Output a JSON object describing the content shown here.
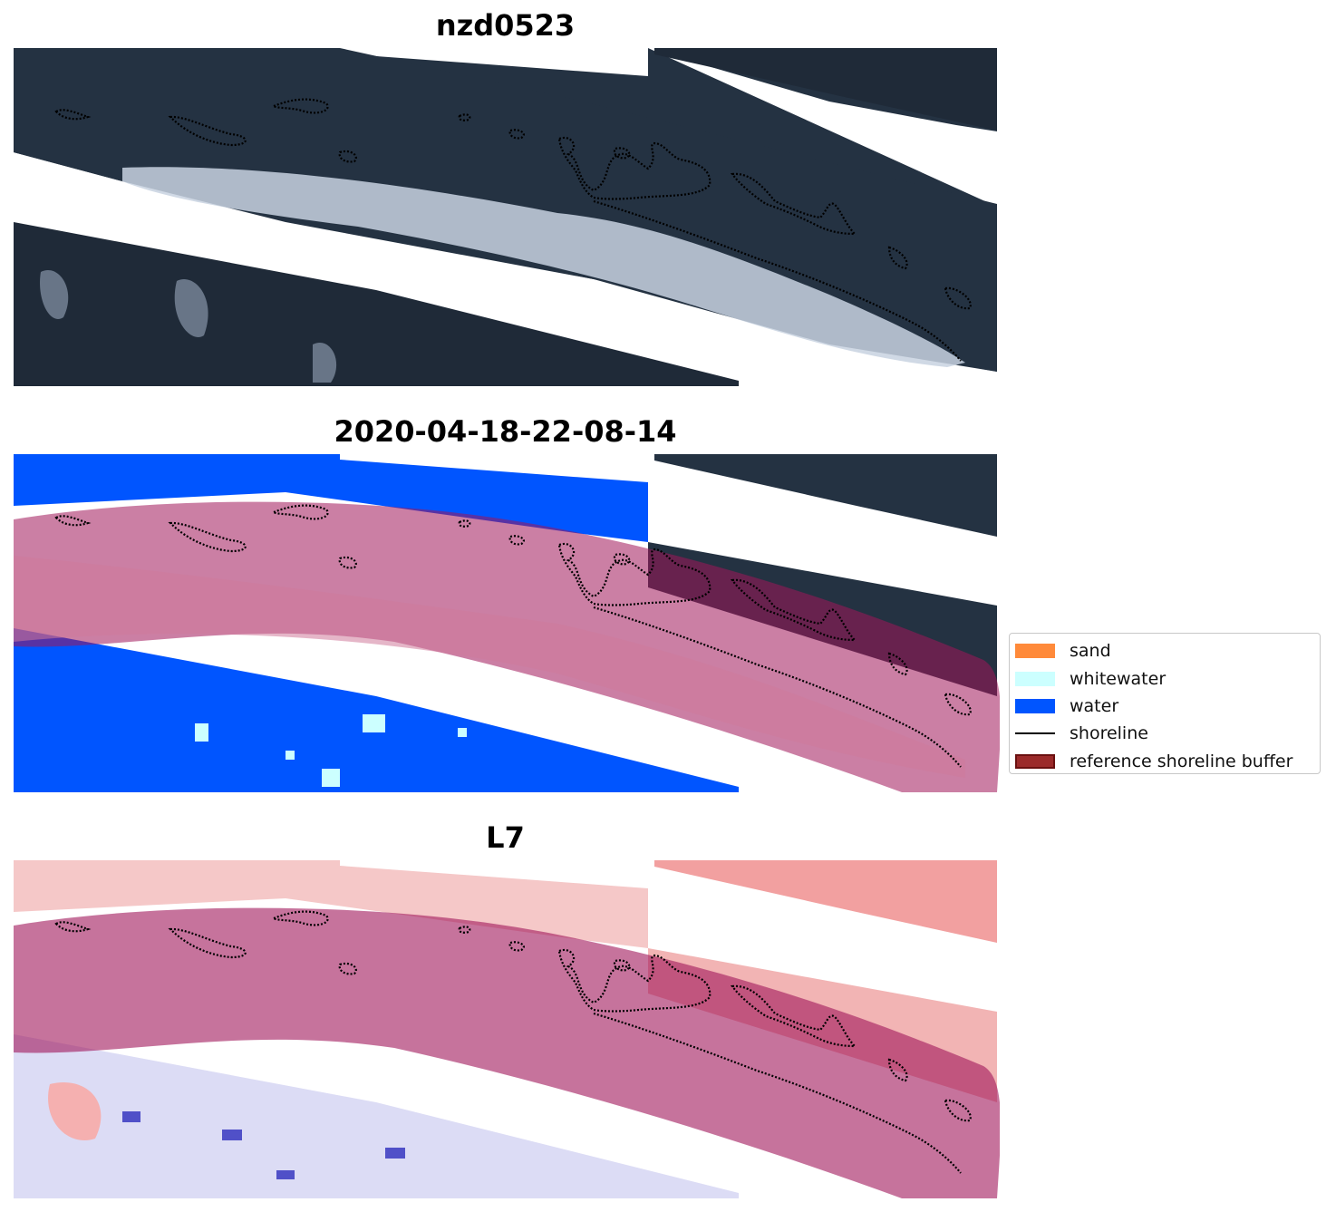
{
  "panels": [
    {
      "title": "nzd0523"
    },
    {
      "title": "2020-04-18-22-08-14"
    },
    {
      "title": "L7"
    }
  ],
  "legend": {
    "items": [
      {
        "label": "sand",
        "color": "#ff8a3a",
        "kind": "patch"
      },
      {
        "label": "whitewater",
        "color": "#ccffff",
        "kind": "patch"
      },
      {
        "label": "water",
        "color": "#0055ff",
        "kind": "patch"
      },
      {
        "label": "shoreline",
        "color": "#000000",
        "kind": "line"
      },
      {
        "label": "reference shoreline buffer",
        "color": "#9b2a2a",
        "kind": "patch"
      }
    ]
  },
  "colors": {
    "rgb_dark": "#243242",
    "rgb_dark_alt": "#1f2a38",
    "whitewater_foam": "#c8d2e0",
    "water_class": "#0055ff",
    "buffer_overlay": "#a0155a",
    "index_positive": "#f05050",
    "index_negative": "#6a6ae0",
    "shoreline": "#000000"
  }
}
